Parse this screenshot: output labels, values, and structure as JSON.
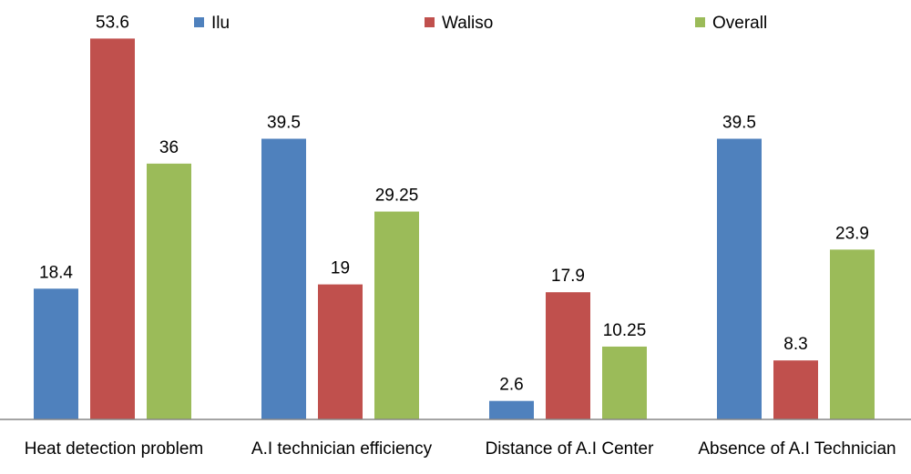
{
  "chart_data": {
    "type": "bar",
    "categories": [
      "Heat detection problem",
      "A.I technician efficiency",
      "Distance of A.I Center",
      "Absence of A.I Technician"
    ],
    "series": [
      {
        "name": "Ilu",
        "values": [
          18.4,
          39.5,
          2.6,
          39.5
        ],
        "labels": [
          "18.4",
          "39.5",
          "2.6",
          "39.5"
        ],
        "color": "#4F81BD"
      },
      {
        "name": "Waliso",
        "values": [
          53.6,
          19,
          17.9,
          8.3
        ],
        "labels": [
          "53.6",
          "19",
          "17.9",
          "8.3"
        ],
        "color": "#C0504D"
      },
      {
        "name": "Overall",
        "values": [
          36,
          29.25,
          10.25,
          23.9
        ],
        "labels": [
          "36",
          "29.25",
          "10.25",
          "23.9"
        ],
        "color": "#9BBB59"
      }
    ],
    "ylim": [
      0,
      60
    ],
    "grid": false,
    "legend_position": "top",
    "axis_color": "#868686"
  }
}
